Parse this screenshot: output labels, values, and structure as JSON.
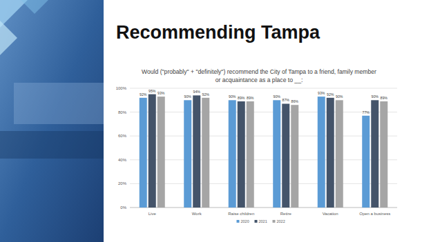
{
  "heading": "Recommending Tampa",
  "chart_data": {
    "type": "bar",
    "title": "Would (\"probably\" + \"definitely\") recommend the City of Tampa to a friend, family member or acquaintance as a place to __:",
    "categories": [
      "Live",
      "Work",
      "Raise children",
      "Retire",
      "Vacation",
      "Open a business"
    ],
    "series": [
      {
        "name": "2020",
        "color": "#5b9bd5",
        "values": [
          92,
          90,
          90,
          90,
          93,
          77
        ],
        "value_labels": [
          "92%",
          "90%",
          "90%",
          "90%",
          "93%",
          "77%"
        ]
      },
      {
        "name": "2021",
        "color": "#44546a",
        "values": [
          95,
          94,
          89,
          87,
          92,
          90
        ],
        "value_labels": [
          "95%",
          "94%",
          "89%",
          "87%",
          "92%",
          "90%"
        ]
      },
      {
        "name": "2022",
        "color": "#a5a5a5",
        "values": [
          93,
          92,
          89,
          86,
          90,
          89
        ],
        "value_labels": [
          "93%",
          "92%",
          "89%",
          "86%",
          "90%",
          "89%"
        ]
      }
    ],
    "ylim": [
      0,
      100
    ],
    "yticks": [
      {
        "value": 0,
        "label": "0%"
      },
      {
        "value": 20,
        "label": "20%"
      },
      {
        "value": 40,
        "label": "40%"
      },
      {
        "value": 60,
        "label": "60%"
      },
      {
        "value": 80,
        "label": "80%"
      },
      {
        "value": 100,
        "label": "100%"
      }
    ],
    "grid": true,
    "data_labels": true,
    "legend": "bottom"
  }
}
